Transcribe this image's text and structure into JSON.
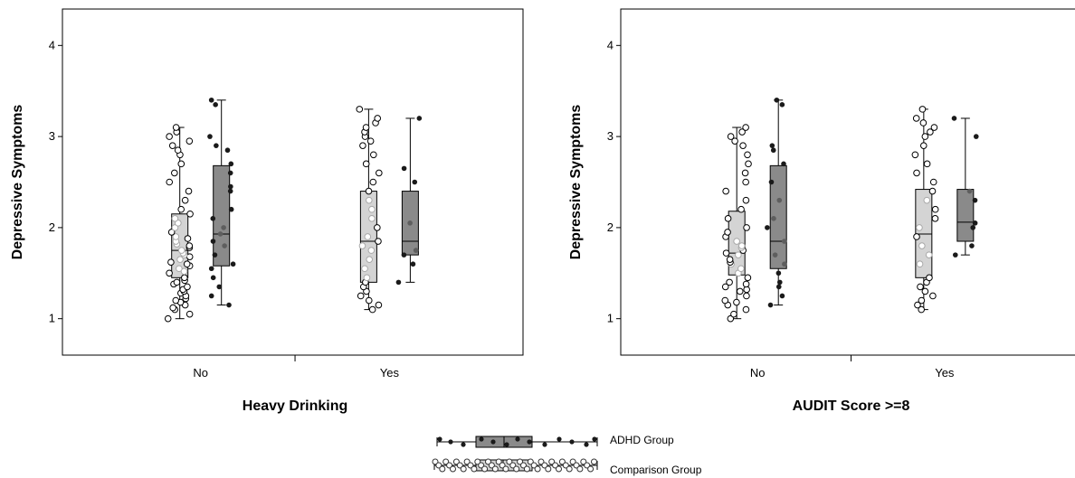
{
  "chart_data": [
    {
      "type": "box-strip",
      "xlabel": "Heavy Drinking",
      "ylabel": "Depressive Symptoms",
      "ylim": [
        0.6,
        4.4
      ],
      "yticks": [
        1,
        2,
        3,
        4
      ],
      "categories": [
        "No",
        "Yes"
      ],
      "series": [
        {
          "name": "Comparison Group",
          "boxes": [
            {
              "category": "No",
              "min": 1.0,
              "q1": 1.45,
              "median": 1.75,
              "q3": 2.15,
              "max": 3.1,
              "points": [
                1.0,
                1.05,
                1.1,
                1.12,
                1.15,
                1.18,
                1.2,
                1.22,
                1.25,
                1.28,
                1.3,
                1.32,
                1.35,
                1.38,
                1.4,
                1.42,
                1.45,
                1.5,
                1.52,
                1.55,
                1.58,
                1.6,
                1.62,
                1.65,
                1.68,
                1.7,
                1.72,
                1.75,
                1.78,
                1.8,
                1.82,
                1.85,
                1.88,
                1.9,
                1.95,
                2.0,
                2.05,
                2.1,
                2.15,
                2.2,
                2.3,
                2.4,
                2.5,
                2.6,
                2.7,
                2.8,
                2.85,
                2.9,
                2.95,
                3.0,
                3.05,
                3.1
              ]
            },
            {
              "category": "Yes",
              "min": 1.1,
              "q1": 1.4,
              "median": 1.85,
              "q3": 2.4,
              "max": 3.3,
              "points": [
                1.1,
                1.15,
                1.2,
                1.25,
                1.3,
                1.35,
                1.4,
                1.45,
                1.55,
                1.65,
                1.75,
                1.8,
                1.85,
                1.9,
                2.0,
                2.1,
                2.2,
                2.3,
                2.4,
                2.5,
                2.6,
                2.7,
                2.8,
                2.9,
                2.95,
                3.0,
                3.05,
                3.1,
                3.15,
                3.2,
                3.3
              ]
            }
          ]
        },
        {
          "name": "ADHD Group",
          "boxes": [
            {
              "category": "No",
              "min": 1.15,
              "q1": 1.58,
              "median": 1.93,
              "q3": 2.68,
              "max": 3.4,
              "points": [
                1.15,
                1.25,
                1.35,
                1.45,
                1.55,
                1.6,
                1.7,
                1.8,
                1.85,
                1.93,
                2.0,
                2.1,
                2.2,
                2.4,
                2.45,
                2.6,
                2.7,
                2.85,
                2.9,
                3.0,
                3.35,
                3.4
              ]
            },
            {
              "category": "Yes",
              "min": 1.4,
              "q1": 1.7,
              "median": 1.85,
              "q3": 2.4,
              "max": 3.2,
              "points": [
                1.4,
                1.6,
                1.7,
                1.75,
                2.05,
                2.5,
                2.65,
                3.2
              ]
            }
          ]
        }
      ]
    },
    {
      "type": "box-strip",
      "xlabel": "AUDIT Score >=8",
      "ylabel": "Depressive Symptoms",
      "ylim": [
        0.6,
        4.4
      ],
      "yticks": [
        1,
        2,
        3,
        4
      ],
      "categories": [
        "No",
        "Yes"
      ],
      "series": [
        {
          "name": "Comparison Group",
          "boxes": [
            {
              "category": "No",
              "min": 1.0,
              "q1": 1.48,
              "median": 1.72,
              "q3": 2.18,
              "max": 3.1,
              "points": [
                1.0,
                1.05,
                1.1,
                1.15,
                1.18,
                1.2,
                1.25,
                1.3,
                1.32,
                1.35,
                1.38,
                1.4,
                1.45,
                1.5,
                1.55,
                1.6,
                1.62,
                1.65,
                1.7,
                1.72,
                1.75,
                1.78,
                1.8,
                1.85,
                1.9,
                1.95,
                2.0,
                2.1,
                2.2,
                2.3,
                2.4,
                2.5,
                2.6,
                2.7,
                2.8,
                2.9,
                2.95,
                3.0,
                3.05,
                3.1
              ]
            },
            {
              "category": "Yes",
              "min": 1.1,
              "q1": 1.45,
              "median": 1.93,
              "q3": 2.42,
              "max": 3.3,
              "points": [
                1.1,
                1.15,
                1.2,
                1.25,
                1.3,
                1.35,
                1.4,
                1.45,
                1.6,
                1.7,
                1.8,
                1.9,
                2.0,
                2.1,
                2.2,
                2.3,
                2.4,
                2.5,
                2.6,
                2.7,
                2.8,
                2.9,
                3.0,
                3.05,
                3.1,
                3.15,
                3.2,
                3.3
              ]
            }
          ]
        },
        {
          "name": "ADHD Group",
          "boxes": [
            {
              "category": "No",
              "min": 1.15,
              "q1": 1.55,
              "median": 1.85,
              "q3": 2.68,
              "max": 3.4,
              "points": [
                1.15,
                1.25,
                1.35,
                1.4,
                1.5,
                1.6,
                1.7,
                1.85,
                2.0,
                2.1,
                2.3,
                2.5,
                2.7,
                2.85,
                2.9,
                3.35,
                3.4
              ]
            },
            {
              "category": "Yes",
              "min": 1.7,
              "q1": 1.85,
              "median": 2.06,
              "q3": 2.42,
              "max": 3.2,
              "points": [
                1.7,
                1.8,
                2.0,
                2.05,
                2.3,
                2.4,
                3.0,
                3.2
              ]
            }
          ]
        }
      ]
    }
  ],
  "legend": [
    {
      "name": "ADHD Group"
    },
    {
      "name": "Comparison Group"
    }
  ],
  "colors": {
    "comparison_box": "#d4d4d4",
    "adhd_box": "#8a8a8a",
    "adhd_point": "#1a1a1a",
    "comparison_point_fill": "#ffffff",
    "comparison_point_in_box": "#a8a8a8",
    "adhd_point_in_box": "#5e5e5e",
    "axis": "#000000"
  }
}
